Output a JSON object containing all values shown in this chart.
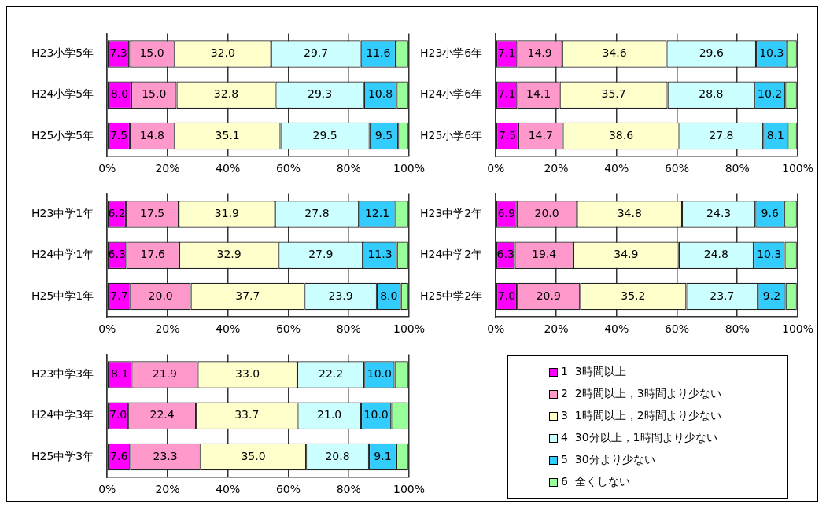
{
  "chart_data": [
    {
      "type": "bar",
      "orientation": "horizontal",
      "stacked": true,
      "grid": "x",
      "legend": "bottom right",
      "categories": [
        "H23小学5年",
        "H24小学5年",
        "H25小学5年"
      ],
      "xlim": [
        0,
        100
      ],
      "xticks": [
        {
          "value": 0,
          "label": "0%"
        },
        {
          "value": 20,
          "label": "20%"
        },
        {
          "value": 40,
          "label": "40%"
        },
        {
          "value": 60,
          "label": "60%"
        },
        {
          "value": 80,
          "label": "80%"
        },
        {
          "value": 100,
          "label": "100%"
        }
      ],
      "series": [
        {
          "name": "1  3時間以上",
          "color": "#ff00ff",
          "values": [
            7.3,
            8.0,
            7.5
          ],
          "value_labels": [
            "7.3",
            "8.0",
            "7.5"
          ]
        },
        {
          "name": "2  2時間以上，3時間より少ない",
          "color": "#ff99cc",
          "values": [
            15.0,
            15.0,
            14.8
          ],
          "value_labels": [
            "15.0",
            "15.0",
            "14.8"
          ]
        },
        {
          "name": "3  1時間以上，2時間より少ない",
          "color": "#ffffcc",
          "values": [
            32.0,
            32.8,
            35.1
          ],
          "value_labels": [
            "32.0",
            "32.8",
            "35.1"
          ]
        },
        {
          "name": "4  30分以上，1時間より少ない",
          "color": "#ccffff",
          "values": [
            29.7,
            29.3,
            29.5
          ],
          "value_labels": [
            "29.7",
            "29.3",
            "29.5"
          ]
        },
        {
          "name": "5  30分より少ない",
          "color": "#33ccff",
          "values": [
            11.6,
            10.8,
            9.5
          ],
          "value_labels": [
            "11.6",
            "10.8",
            "9.5"
          ]
        },
        {
          "name": "6  全くしない",
          "color": "#99ff99",
          "values": [
            4.1,
            3.8,
            3.3
          ],
          "value_labels": [
            null,
            null,
            null
          ]
        }
      ]
    },
    {
      "type": "bar",
      "orientation": "horizontal",
      "stacked": true,
      "grid": "x",
      "categories": [
        "H23小学6年",
        "H24小学6年",
        "H25小学6年"
      ],
      "xlim": [
        0,
        100
      ],
      "xticks": [
        {
          "value": 0,
          "label": "0%"
        },
        {
          "value": 20,
          "label": "20%"
        },
        {
          "value": 40,
          "label": "40%"
        },
        {
          "value": 60,
          "label": "60%"
        },
        {
          "value": 80,
          "label": "80%"
        },
        {
          "value": 100,
          "label": "100%"
        }
      ],
      "series": [
        {
          "color": "#ff00ff",
          "values": [
            7.1,
            7.1,
            7.5
          ],
          "value_labels": [
            "7.1",
            "7.1",
            "7.5"
          ]
        },
        {
          "color": "#ff99cc",
          "values": [
            14.9,
            14.1,
            14.7
          ],
          "value_labels": [
            "14.9",
            "14.1",
            "14.7"
          ]
        },
        {
          "color": "#ffffcc",
          "values": [
            34.6,
            35.7,
            38.6
          ],
          "value_labels": [
            "34.6",
            "35.7",
            "38.6"
          ]
        },
        {
          "color": "#ccffff",
          "values": [
            29.6,
            28.8,
            27.8
          ],
          "value_labels": [
            "29.6",
            "28.8",
            "27.8"
          ]
        },
        {
          "color": "#33ccff",
          "values": [
            10.3,
            10.2,
            8.1
          ],
          "value_labels": [
            "10.3",
            "10.2",
            "8.1"
          ]
        },
        {
          "color": "#99ff99",
          "values": [
            3.2,
            3.8,
            3.0
          ],
          "value_labels": [
            null,
            null,
            null
          ]
        }
      ]
    },
    {
      "type": "bar",
      "orientation": "horizontal",
      "stacked": true,
      "grid": "x",
      "categories": [
        "H23中学1年",
        "H24中学1年",
        "H25中学1年"
      ],
      "xlim": [
        0,
        100
      ],
      "xticks": [
        {
          "value": 0,
          "label": "0%"
        },
        {
          "value": 20,
          "label": "20%"
        },
        {
          "value": 40,
          "label": "40%"
        },
        {
          "value": 60,
          "label": "60%"
        },
        {
          "value": 80,
          "label": "80%"
        },
        {
          "value": 100,
          "label": "100%"
        }
      ],
      "series": [
        {
          "color": "#ff00ff",
          "values": [
            6.2,
            6.3,
            7.7
          ],
          "value_labels": [
            "6.2",
            "6.3",
            "7.7"
          ]
        },
        {
          "color": "#ff99cc",
          "values": [
            17.5,
            17.6,
            20.0
          ],
          "value_labels": [
            "17.5",
            "17.6",
            "20.0"
          ]
        },
        {
          "color": "#ffffcc",
          "values": [
            31.9,
            32.9,
            37.7
          ],
          "value_labels": [
            "31.9",
            "32.9",
            "37.7"
          ]
        },
        {
          "color": "#ccffff",
          "values": [
            27.8,
            27.9,
            23.9
          ],
          "value_labels": [
            "27.8",
            "27.9",
            "23.9"
          ]
        },
        {
          "color": "#33ccff",
          "values": [
            12.1,
            11.3,
            8.0
          ],
          "value_labels": [
            "12.1",
            "11.3",
            "8.0"
          ]
        },
        {
          "color": "#99ff99",
          "values": [
            4.2,
            3.7,
            2.4
          ],
          "value_labels": [
            null,
            null,
            null
          ]
        }
      ]
    },
    {
      "type": "bar",
      "orientation": "horizontal",
      "stacked": true,
      "grid": "x",
      "categories": [
        "H23中学2年",
        "H24中学2年",
        "H25中学2年"
      ],
      "xlim": [
        0,
        100
      ],
      "xticks": [
        {
          "value": 0,
          "label": "0%"
        },
        {
          "value": 20,
          "label": "20%"
        },
        {
          "value": 40,
          "label": "40%"
        },
        {
          "value": 60,
          "label": "60%"
        },
        {
          "value": 80,
          "label": "80%"
        },
        {
          "value": 100,
          "label": "100%"
        }
      ],
      "series": [
        {
          "color": "#ff00ff",
          "values": [
            6.9,
            6.3,
            7.0
          ],
          "value_labels": [
            "6.9",
            "6.3",
            "7.0"
          ]
        },
        {
          "color": "#ff99cc",
          "values": [
            20.0,
            19.4,
            20.9
          ],
          "value_labels": [
            "20.0",
            "19.4",
            "20.9"
          ]
        },
        {
          "color": "#ffffcc",
          "values": [
            34.8,
            34.9,
            35.2
          ],
          "value_labels": [
            "34.8",
            "34.9",
            "35.2"
          ]
        },
        {
          "color": "#ccffff",
          "values": [
            24.3,
            24.8,
            23.7
          ],
          "value_labels": [
            "24.3",
            "24.8",
            "23.7"
          ]
        },
        {
          "color": "#33ccff",
          "values": [
            9.6,
            10.3,
            9.2
          ],
          "value_labels": [
            "9.6",
            "10.3",
            "9.2"
          ]
        },
        {
          "color": "#99ff99",
          "values": [
            4.1,
            4.0,
            3.7
          ],
          "value_labels": [
            null,
            null,
            null
          ]
        }
      ]
    },
    {
      "type": "bar",
      "orientation": "horizontal",
      "stacked": true,
      "grid": "x",
      "categories": [
        "H23中学3年",
        "H24中学3年",
        "H25中学3年"
      ],
      "xlim": [
        0,
        100
      ],
      "xticks": [
        {
          "value": 0,
          "label": "0%"
        },
        {
          "value": 20,
          "label": "20%"
        },
        {
          "value": 40,
          "label": "40%"
        },
        {
          "value": 60,
          "label": "60%"
        },
        {
          "value": 80,
          "label": "80%"
        },
        {
          "value": 100,
          "label": "100%"
        }
      ],
      "series": [
        {
          "color": "#ff00ff",
          "values": [
            8.1,
            7.0,
            7.6
          ],
          "value_labels": [
            "8.1",
            "7.0",
            "7.6"
          ]
        },
        {
          "color": "#ff99cc",
          "values": [
            21.9,
            22.4,
            23.3
          ],
          "value_labels": [
            "21.9",
            "22.4",
            "23.3"
          ]
        },
        {
          "color": "#ffffcc",
          "values": [
            33.0,
            33.7,
            35.0
          ],
          "value_labels": [
            "33.0",
            "33.7",
            "35.0"
          ]
        },
        {
          "color": "#ccffff",
          "values": [
            22.2,
            21.0,
            20.8
          ],
          "value_labels": [
            "22.2",
            "21.0",
            "20.8"
          ]
        },
        {
          "color": "#33ccff",
          "values": [
            10.0,
            10.0,
            9.1
          ],
          "value_labels": [
            "10.0",
            "10.0",
            "9.1"
          ]
        },
        {
          "color": "#99ff99",
          "values": [
            4.5,
            5.5,
            3.9
          ],
          "value_labels": [
            null,
            null,
            null
          ]
        }
      ]
    }
  ]
}
